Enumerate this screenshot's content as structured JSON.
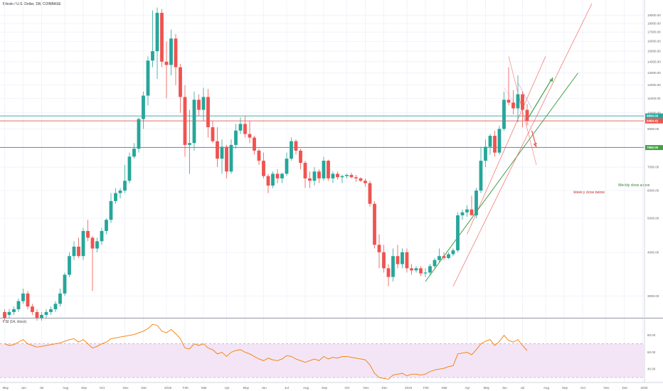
{
  "header": {
    "symbol_title": "Bitcoin / U.S. Dollar, 1W, COINBASE",
    "rsi_title": "RSI (14, close)"
  },
  "colors": {
    "up": "#26a69a",
    "down": "#ef5350",
    "green_line": "#43a047",
    "red_line": "#ef5350",
    "rsi_line": "#f57c00",
    "rsi_band": "#f3e5f5",
    "grid": "#f0f3fa",
    "annotation_green": "#2e7d32",
    "annotation_red": "#c62828"
  },
  "chart_data": [
    {
      "type": "candlestick",
      "title": "Bitcoin / U.S. Dollar, 1W, COINBASE",
      "y_scale": "log",
      "ylim": [
        2600,
        21000
      ],
      "y_ticks": [
        3000,
        4000,
        5000,
        6000,
        7000,
        8000,
        9000,
        10000,
        11000,
        12000,
        13000,
        14000,
        15000,
        16000,
        17000,
        18000,
        19000
      ],
      "y_tick_labels": [
        "3000.00",
        "4000.00",
        "5000.00",
        "6000.00",
        "7000.00",
        "8000.00",
        "9000.00",
        "10000.00",
        "11000.00",
        "12000.00",
        "13000.00",
        "14000.00",
        "15000.00",
        "16000.00",
        "17000.00",
        "18000.00",
        "19000.00"
      ],
      "x_axis_labels": [
        {
          "label": "May",
          "week": 0
        },
        {
          "label": "Jun",
          "week": 4
        },
        {
          "label": "Jul",
          "week": 8
        },
        {
          "label": "Aug",
          "week": 13
        },
        {
          "label": "Sep",
          "week": 17
        },
        {
          "label": "Oct",
          "week": 21
        },
        {
          "label": "Nov",
          "week": 26
        },
        {
          "label": "Dec",
          "week": 30
        },
        {
          "label": "2018",
          "week": 35
        },
        {
          "label": "Feb",
          "week": 39
        },
        {
          "label": "Mar",
          "week": 43
        },
        {
          "label": "Apr",
          "week": 48
        },
        {
          "label": "May",
          "week": 52
        },
        {
          "label": "Jun",
          "week": 56
        },
        {
          "label": "Jul",
          "week": 61
        },
        {
          "label": "Aug",
          "week": 65
        },
        {
          "label": "Sep",
          "week": 69
        },
        {
          "label": "Oct",
          "week": 74
        },
        {
          "label": "Nov",
          "week": 78
        },
        {
          "label": "Dec",
          "week": 82
        },
        {
          "label": "2019",
          "week": 87
        },
        {
          "label": "Feb",
          "week": 91
        },
        {
          "label": "Mar",
          "week": 95
        },
        {
          "label": "Apr",
          "week": 100
        },
        {
          "label": "May",
          "week": 104
        },
        {
          "label": "Jun",
          "week": 108
        },
        {
          "label": "Jul",
          "week": 112
        },
        {
          "label": "Aug",
          "week": 117
        },
        {
          "label": "Sep",
          "week": 121
        },
        {
          "label": "Oct",
          "week": 125
        },
        {
          "label": "Nov",
          "week": 130
        },
        {
          "label": "Dec",
          "week": 134
        },
        {
          "label": "2020",
          "week": 138
        },
        {
          "label": "Feb",
          "week": 143
        }
      ],
      "ohlc": [
        [
          0,
          2700,
          2750,
          2550,
          2600
        ],
        [
          1,
          2650,
          2750,
          2600,
          2700
        ],
        [
          2,
          2700,
          2800,
          2650,
          2750
        ],
        [
          3,
          2750,
          2950,
          2700,
          2900
        ],
        [
          4,
          2900,
          3150,
          2850,
          3050
        ],
        [
          5,
          3050,
          3100,
          2750,
          2800
        ],
        [
          6,
          2800,
          2850,
          2650,
          2700
        ],
        [
          7,
          2700,
          2750,
          2550,
          2600
        ],
        [
          8,
          2600,
          2700,
          2550,
          2650
        ],
        [
          9,
          2650,
          2750,
          2600,
          2700
        ],
        [
          10,
          2700,
          2800,
          2650,
          2750
        ],
        [
          11,
          2750,
          2900,
          2700,
          2850
        ],
        [
          12,
          2850,
          3150,
          2800,
          3050
        ],
        [
          13,
          3050,
          3500,
          3000,
          3450
        ],
        [
          14,
          3450,
          4000,
          3400,
          3900
        ],
        [
          15,
          3900,
          4300,
          3800,
          4150
        ],
        [
          16,
          4150,
          4400,
          3850,
          3900
        ],
        [
          17,
          3900,
          4700,
          3800,
          4600
        ],
        [
          18,
          4600,
          4950,
          4300,
          4400
        ],
        [
          19,
          4400,
          4450,
          3100,
          4100
        ],
        [
          20,
          4100,
          4400,
          4000,
          4300
        ],
        [
          21,
          4300,
          4700,
          4200,
          4600
        ],
        [
          22,
          4600,
          5000,
          4500,
          4950
        ],
        [
          23,
          4950,
          5900,
          4850,
          5600
        ],
        [
          24,
          5600,
          6100,
          5500,
          5900
        ],
        [
          25,
          5900,
          6100,
          5700,
          6000
        ],
        [
          26,
          6000,
          7100,
          5900,
          6400
        ],
        [
          27,
          6400,
          7700,
          6300,
          7500
        ],
        [
          28,
          7500,
          8200,
          7400,
          7900
        ],
        [
          29,
          7900,
          9700,
          7700,
          9600
        ],
        [
          30,
          9600,
          11500,
          9000,
          11200
        ],
        [
          31,
          11200,
          14500,
          10500,
          14100
        ],
        [
          32,
          14100,
          19600,
          13500,
          15000
        ],
        [
          33,
          15000,
          20000,
          12500,
          19300
        ],
        [
          34,
          19300,
          19800,
          13500,
          14000
        ],
        [
          35,
          14000,
          16000,
          11000,
          13700
        ],
        [
          36,
          13700,
          17300,
          12800,
          16300
        ],
        [
          37,
          16300,
          16800,
          12000,
          13500
        ],
        [
          38,
          13500,
          13800,
          10000,
          11100
        ],
        [
          39,
          11100,
          12000,
          7500,
          8100
        ],
        [
          40,
          8100,
          10200,
          6700,
          8200
        ],
        [
          41,
          8200,
          11500,
          7800,
          10900
        ],
        [
          42,
          10900,
          11300,
          9800,
          10200
        ],
        [
          43,
          10200,
          11800,
          9500,
          11100
        ],
        [
          44,
          11100,
          11700,
          8500,
          9100
        ],
        [
          45,
          9100,
          9500,
          8200,
          8300
        ],
        [
          46,
          8300,
          9100,
          7000,
          7400
        ],
        [
          47,
          7400,
          8400,
          6700,
          8000
        ],
        [
          48,
          8000,
          8100,
          6500,
          6800
        ],
        [
          49,
          6800,
          8400,
          6700,
          8100
        ],
        [
          50,
          8100,
          9300,
          7900,
          8900
        ],
        [
          51,
          8900,
          9700,
          8700,
          9300
        ],
        [
          52,
          9300,
          9800,
          8500,
          8700
        ],
        [
          53,
          8700,
          9500,
          8200,
          8500
        ],
        [
          54,
          8500,
          8600,
          7600,
          7800
        ],
        [
          55,
          7800,
          7900,
          7100,
          7300
        ],
        [
          56,
          7300,
          7700,
          6500,
          6600
        ],
        [
          57,
          6600,
          6700,
          5900,
          6200
        ],
        [
          58,
          6200,
          6800,
          6100,
          6700
        ],
        [
          59,
          6700,
          6900,
          6300,
          6500
        ],
        [
          60,
          6500,
          6750,
          6300,
          6700
        ],
        [
          61,
          6700,
          7700,
          6600,
          7400
        ],
        [
          62,
          7400,
          8500,
          7300,
          8300
        ],
        [
          63,
          8300,
          8400,
          7600,
          7800
        ],
        [
          64,
          7800,
          7900,
          6900,
          7200
        ],
        [
          65,
          7200,
          7300,
          6100,
          6500
        ],
        [
          66,
          6500,
          6800,
          6100,
          6400
        ],
        [
          67,
          6400,
          7000,
          6200,
          6800
        ],
        [
          68,
          6800,
          6900,
          6300,
          6500
        ],
        [
          69,
          6500,
          7500,
          6400,
          7300
        ],
        [
          70,
          7300,
          7350,
          6400,
          6500
        ],
        [
          71,
          6500,
          6800,
          6300,
          6700
        ],
        [
          72,
          6700,
          6800,
          6450,
          6550
        ],
        [
          73,
          6550,
          6650,
          6300,
          6600
        ],
        [
          74,
          6600,
          6700,
          6500,
          6650
        ],
        [
          75,
          6650,
          6750,
          6500,
          6550
        ],
        [
          76,
          6550,
          6650,
          6350,
          6500
        ],
        [
          77,
          6500,
          6550,
          6350,
          6400
        ],
        [
          78,
          6400,
          6500,
          6150,
          6300
        ],
        [
          79,
          6300,
          6400,
          5400,
          5500
        ],
        [
          80,
          5500,
          5600,
          4100,
          4200
        ],
        [
          81,
          4200,
          4500,
          3600,
          4000
        ],
        [
          82,
          4000,
          4200,
          3500,
          3600
        ],
        [
          83,
          3600,
          3700,
          3200,
          3400
        ],
        [
          84,
          3400,
          4100,
          3300,
          3900
        ],
        [
          85,
          3900,
          4200,
          3600,
          3700
        ],
        [
          86,
          3700,
          4100,
          3600,
          4000
        ],
        [
          87,
          4000,
          4100,
          3500,
          3600
        ],
        [
          88,
          3600,
          3700,
          3450,
          3550
        ],
        [
          89,
          3550,
          3650,
          3500,
          3600
        ],
        [
          90,
          3600,
          3650,
          3420,
          3480
        ],
        [
          91,
          3480,
          3600,
          3400,
          3500
        ],
        [
          92,
          3500,
          3700,
          3450,
          3650
        ],
        [
          93,
          3650,
          3850,
          3600,
          3800
        ],
        [
          94,
          3800,
          4100,
          3750,
          3900
        ],
        [
          95,
          3900,
          4000,
          3800,
          3850
        ],
        [
          96,
          3850,
          4000,
          3820,
          3950
        ],
        [
          97,
          3950,
          4100,
          3900,
          4050
        ],
        [
          98,
          4050,
          5200,
          4000,
          5100
        ],
        [
          99,
          5100,
          5300,
          4950,
          5200
        ],
        [
          100,
          5200,
          5450,
          5050,
          5300
        ],
        [
          101,
          5300,
          5800,
          5200,
          5100
        ],
        [
          102,
          5100,
          6100,
          5000,
          6000
        ],
        [
          103,
          6000,
          8000,
          5900,
          7300
        ],
        [
          104,
          7300,
          8400,
          7000,
          8000
        ],
        [
          105,
          8000,
          8700,
          7600,
          8600
        ],
        [
          106,
          8600,
          8900,
          7500,
          7700
        ],
        [
          107,
          7700,
          9200,
          7600,
          9000
        ],
        [
          108,
          9000,
          11500,
          8900,
          10900
        ],
        [
          109,
          10900,
          13500,
          10500,
          10700
        ],
        [
          110,
          10700,
          11600,
          9900,
          10300
        ],
        [
          111,
          10300,
          12800,
          9400,
          11300
        ],
        [
          112,
          11300,
          11500,
          9100,
          10200
        ],
        [
          113,
          10200,
          10600,
          9200,
          9484
        ]
      ],
      "horizontal_lines": [
        {
          "price": 9800,
          "label": "9800.00",
          "color": "#26a69a"
        },
        {
          "price": 9484.42,
          "label": "9484.42",
          "color": "#ef5350"
        },
        {
          "price": 7960,
          "label": "7960.00",
          "color": "#43a047"
        }
      ],
      "annotations": [
        {
          "text": "Weekly close above",
          "color": "#2e7d32"
        },
        {
          "text": "Weekly close below",
          "color": "#c62828"
        }
      ]
    },
    {
      "type": "line",
      "title": "RSI (14, close)",
      "ylim": [
        25,
        100
      ],
      "y_ticks": [
        40,
        60,
        80
      ],
      "y_tick_labels": [
        "40.00",
        "60.00",
        "80.00"
      ],
      "band": [
        30,
        70
      ],
      "values": [
        70,
        68,
        69,
        72,
        75,
        70,
        68,
        66,
        67,
        68,
        69,
        70,
        71,
        73,
        75,
        76,
        72,
        75,
        70,
        65,
        67,
        70,
        72,
        76,
        77,
        78,
        79,
        80,
        81,
        83,
        85,
        88,
        93,
        92,
        85,
        83,
        87,
        82,
        76,
        65,
        64,
        70,
        68,
        70,
        65,
        63,
        58,
        60,
        55,
        60,
        62,
        63,
        60,
        58,
        55,
        52,
        50,
        53,
        51,
        50,
        52,
        56,
        55,
        52,
        50,
        48,
        50,
        52,
        50,
        55,
        52,
        54,
        53,
        55,
        55,
        54,
        53,
        52,
        51,
        45,
        35,
        30,
        29,
        28,
        33,
        34,
        35,
        32,
        34,
        34,
        33,
        34,
        37,
        39,
        40,
        41,
        43,
        44,
        58,
        59,
        60,
        57,
        63,
        70,
        73,
        75,
        68,
        73,
        80,
        74,
        72,
        75,
        68,
        62
      ]
    }
  ]
}
